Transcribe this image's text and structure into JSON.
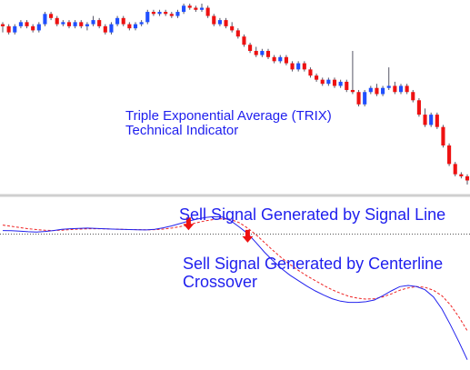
{
  "colors": {
    "bull_candle": "#1f4fff",
    "bear_candle": "#ee1111",
    "wick": "#555566",
    "label_text": "#1f1fee",
    "trix_line": "#2222ee",
    "signal_line": "#ee2222",
    "arrow": "#ee1111",
    "divider": "#cfcfcf",
    "centerline": "#555555"
  },
  "annotations": {
    "price_title": "Triple Exponential Average (TRIX)",
    "price_subtitle": "Technical Indicator",
    "sell_signal_line": "Sell Signal Generated by Signal Line",
    "sell_centerline_1": "Sell Signal Generated by Centerline",
    "sell_centerline_2": "Crossover"
  },
  "chart_data": [
    {
      "type": "candlestick",
      "title": "",
      "grid": false,
      "candles": [
        [
          46,
          47,
          42,
          45
        ],
        [
          45,
          46,
          41,
          42
        ],
        [
          42,
          46,
          41,
          45
        ],
        [
          45,
          48,
          44,
          47
        ],
        [
          47,
          48,
          44,
          45
        ],
        [
          45,
          46,
          42,
          43
        ],
        [
          43,
          47,
          42,
          46
        ],
        [
          46,
          52,
          45,
          51
        ],
        [
          51,
          52,
          48,
          49
        ],
        [
          49,
          50,
          45,
          46
        ],
        [
          46,
          48,
          45,
          47
        ],
        [
          47,
          48,
          44,
          45
        ],
        [
          45,
          48,
          44,
          47
        ],
        [
          47,
          48,
          44,
          45
        ],
        [
          45,
          47,
          43,
          46
        ],
        [
          46,
          50,
          45,
          48
        ],
        [
          48,
          49,
          44,
          45
        ],
        [
          45,
          46,
          41,
          42
        ],
        [
          42,
          47,
          41,
          46
        ],
        [
          46,
          50,
          45,
          49
        ],
        [
          49,
          50,
          45,
          46
        ],
        [
          46,
          47,
          43,
          44
        ],
        [
          44,
          47,
          43,
          46
        ],
        [
          46,
          48,
          45,
          47
        ],
        [
          47,
          53,
          46,
          52
        ],
        [
          52,
          53,
          50,
          51
        ],
        [
          51,
          53,
          50,
          52
        ],
        [
          52,
          53,
          50,
          51
        ],
        [
          51,
          52,
          49,
          50
        ],
        [
          50,
          53,
          49,
          52
        ],
        [
          52,
          56,
          51,
          55
        ],
        [
          55,
          56,
          53,
          54
        ],
        [
          54,
          55,
          52,
          53
        ],
        [
          53,
          56,
          52,
          54
        ],
        [
          54,
          55,
          49,
          50
        ],
        [
          50,
          51,
          45,
          46
        ],
        [
          46,
          49,
          45,
          48
        ],
        [
          48,
          49,
          44,
          45
        ],
        [
          45,
          47,
          42,
          43
        ],
        [
          43,
          44,
          39,
          40
        ],
        [
          40,
          41,
          35,
          36
        ],
        [
          36,
          37,
          32,
          33
        ],
        [
          33,
          35,
          30,
          31
        ],
        [
          31,
          34,
          30,
          33
        ],
        [
          33,
          34,
          29,
          30
        ],
        [
          30,
          31,
          27,
          28
        ],
        [
          28,
          31,
          27,
          30
        ],
        [
          30,
          31,
          26,
          27
        ],
        [
          27,
          28,
          23,
          24
        ],
        [
          24,
          28,
          23,
          27
        ],
        [
          27,
          28,
          23,
          24
        ],
        [
          24,
          25,
          20,
          21
        ],
        [
          21,
          22,
          18,
          19
        ],
        [
          19,
          20,
          16,
          17
        ],
        [
          17,
          20,
          16,
          19
        ],
        [
          19,
          20,
          15,
          16
        ],
        [
          16,
          19,
          15,
          18
        ],
        [
          18,
          19,
          13,
          14
        ],
        [
          14,
          33,
          12,
          13
        ],
        [
          13,
          14,
          6,
          7
        ],
        [
          7,
          14,
          6,
          13
        ],
        [
          13,
          16,
          12,
          15
        ],
        [
          15,
          17,
          11,
          12
        ],
        [
          12,
          16,
          11,
          15
        ],
        [
          15,
          25,
          14,
          16
        ],
        [
          16,
          18,
          12,
          13
        ],
        [
          13,
          17,
          12,
          16
        ],
        [
          16,
          17,
          12,
          13
        ],
        [
          13,
          14,
          8,
          9
        ],
        [
          9,
          10,
          1,
          2
        ],
        [
          2,
          5,
          -4,
          -3
        ],
        [
          -3,
          3,
          -4,
          2
        ],
        [
          2,
          3,
          -5,
          -4
        ],
        [
          -4,
          -3,
          -14,
          -13
        ],
        [
          -13,
          -12,
          -23,
          -22
        ],
        [
          -22,
          -21,
          -28,
          -27
        ],
        [
          -27,
          -26,
          -29,
          -28
        ],
        [
          -28,
          -27,
          -32,
          -30
        ]
      ]
    },
    {
      "type": "line",
      "title": "",
      "grid": false,
      "reference_line": 0,
      "series": [
        {
          "key": "trix",
          "values": [
            0.3,
            0.28,
            0.25,
            0.2,
            0.18,
            0.22,
            0.3,
            0.4,
            0.45,
            0.48,
            0.5,
            0.48,
            0.45,
            0.42,
            0.4,
            0.38,
            0.36,
            0.35,
            0.4,
            0.52,
            0.68,
            0.88,
            1.08,
            1.25,
            1.38,
            1.45,
            1.42,
            1.1,
            0.6,
            0.05,
            -0.7,
            -1.5,
            -2.2,
            -2.85,
            -3.4,
            -3.85,
            -4.3,
            -4.7,
            -5.05,
            -5.35,
            -5.55,
            -5.65,
            -5.65,
            -5.6,
            -5.45,
            -5.1,
            -4.7,
            -4.35,
            -4.25,
            -4.35,
            -4.6,
            -5.2,
            -6.2,
            -7.5,
            -8.9,
            -10.4
          ]
        },
        {
          "key": "signal",
          "values": [
            0.75,
            0.65,
            0.55,
            0.45,
            0.38,
            0.32,
            0.3,
            0.33,
            0.38,
            0.42,
            0.44,
            0.45,
            0.44,
            0.42,
            0.4,
            0.38,
            0.37,
            0.36,
            0.37,
            0.42,
            0.5,
            0.62,
            0.78,
            0.95,
            1.1,
            1.22,
            1.28,
            1.22,
            0.95,
            0.5,
            -0.05,
            -0.7,
            -1.35,
            -1.95,
            -2.5,
            -3.0,
            -3.45,
            -3.85,
            -4.25,
            -4.6,
            -4.9,
            -5.15,
            -5.3,
            -5.38,
            -5.35,
            -5.2,
            -4.95,
            -4.65,
            -4.45,
            -4.35,
            -4.4,
            -4.65,
            -5.1,
            -5.85,
            -6.85,
            -8.0
          ]
        }
      ],
      "markers": [
        {
          "type": "sell-arrow",
          "index": 22
        },
        {
          "type": "sell-arrow",
          "index": 29
        }
      ]
    }
  ]
}
